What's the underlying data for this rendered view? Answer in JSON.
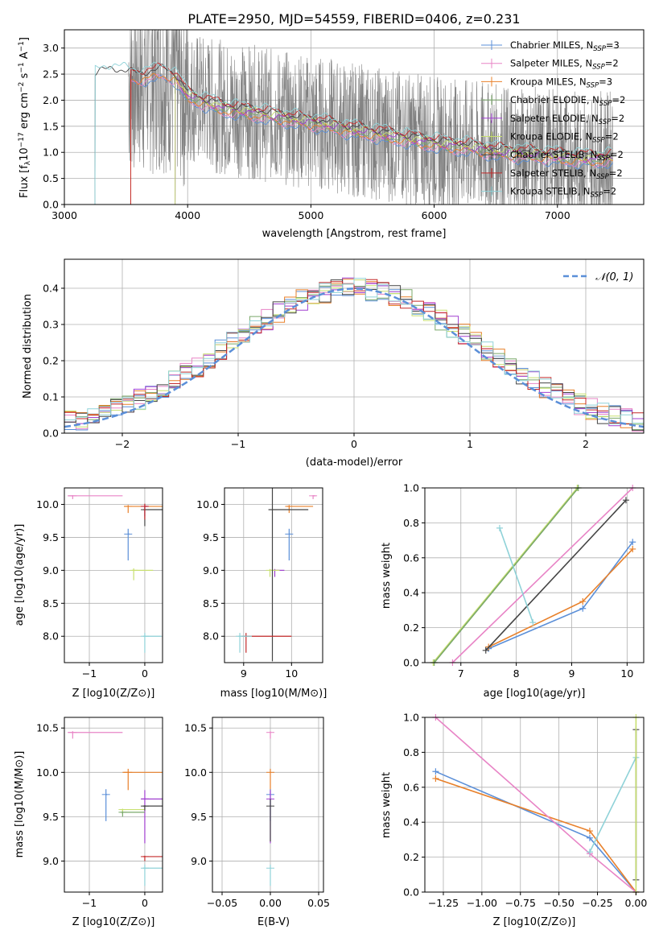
{
  "colors": {
    "chabrier_miles": "#5b8fd8",
    "salpeter_miles": "#e884c6",
    "kroupa_miles": "#e8802a",
    "chabrier_elodie": "#7aa86a",
    "salpeter_elodie": "#a03fd0",
    "kroupa_elodie": "#c8e070",
    "chabrier_stelib": "#444444",
    "salpeter_stelib": "#c42a2a",
    "kroupa_stelib": "#8fd2d8",
    "data": "#808080",
    "normal": "#5b8fd8"
  },
  "legend_labels": {
    "chabrier_miles": "Chabrier MILES, N_SSP=3",
    "salpeter_miles": "Salpeter MILES, N_SSP=2",
    "kroupa_miles": "Kroupa MILES, N_SSP=3",
    "chabrier_elodie": "Chabrier ELODIE, N_SSP=2",
    "salpeter_elodie": "Salpeter ELODIE, N_SSP=2",
    "kroupa_elodie": "Kroupa ELODIE, N_SSP=2",
    "chabrier_stelib": "Chabrier STELIB, N_SSP=2",
    "salpeter_stelib": "Salpeter STELIB, N_SSP=2",
    "kroupa_stelib": "Kroupa STELIB, N_SSP=2"
  },
  "chart_data": [
    {
      "id": "spectrum",
      "type": "line",
      "title": "PLATE=2950, MJD=54559, FIBERID=0406, z=0.231",
      "xlabel": "wavelength [Angstrom, rest frame]",
      "ylabel": "Flux [f_λ 10^-17 erg cm^-2 s^-1 A^-1]",
      "xlim": [
        3000,
        7700
      ],
      "ylim": [
        0,
        3.35
      ],
      "xticks": [
        3000,
        4000,
        5000,
        6000,
        7000
      ],
      "yticks": [
        0.0,
        0.5,
        1.0,
        1.5,
        2.0,
        2.5,
        3.0
      ],
      "data_range": [
        3520,
        7450
      ],
      "model_continuum": {
        "x": [
          3250,
          3300,
          3400,
          3500,
          3600,
          3700,
          3800,
          3900,
          4000,
          4100,
          4300,
          4500,
          4700,
          4900,
          5100,
          5300,
          5500,
          5700,
          5900,
          6100,
          6300,
          6500,
          6700,
          6900,
          7100,
          7300,
          7450
        ],
        "y": [
          2.45,
          2.5,
          2.55,
          2.5,
          2.45,
          2.5,
          2.55,
          2.45,
          2.1,
          2.0,
          1.85,
          1.78,
          1.7,
          1.62,
          1.55,
          1.45,
          1.38,
          1.3,
          1.22,
          1.15,
          1.1,
          1.02,
          0.98,
          0.95,
          0.9,
          0.88,
          0.9
        ]
      },
      "series": [
        {
          "key": "chabrier_miles",
          "start": 3540
        },
        {
          "key": "salpeter_miles",
          "start": 3540
        },
        {
          "key": "kroupa_miles",
          "start": 3540
        },
        {
          "key": "chabrier_elodie",
          "start": 3900
        },
        {
          "key": "salpeter_elodie",
          "start": 3900
        },
        {
          "key": "kroupa_elodie",
          "start": 3900
        },
        {
          "key": "chabrier_stelib",
          "start": 3250
        },
        {
          "key": "salpeter_stelib",
          "start": 3540
        },
        {
          "key": "kroupa_stelib",
          "start": 3250
        }
      ]
    },
    {
      "id": "residuals",
      "type": "line",
      "xlabel": "(data-model)/error",
      "ylabel": "Normed distribution",
      "xlim": [
        -2.5,
        2.5
      ],
      "ylim": [
        0,
        0.48
      ],
      "xticks": [
        -2,
        -1,
        0,
        1,
        2
      ],
      "yticks": [
        0.0,
        0.1,
        0.2,
        0.3,
        0.4
      ],
      "legend": "𝒩(0, 1)",
      "legend_position": "top-right",
      "bin_width": 0.1
    },
    {
      "id": "age_vs_z",
      "type": "scatter",
      "xlabel": "Z [log10(Z/Z⊙)]",
      "ylabel": "age [log10(age/yr)]",
      "xlim": [
        -1.45,
        0.32
      ],
      "ylim": [
        7.6,
        10.25
      ],
      "xticks": [
        -1,
        0
      ],
      "yticks": [
        8.0,
        8.5,
        9.0,
        9.5,
        10.0
      ],
      "points": [
        {
          "key": "salpeter_miles",
          "x": -1.3,
          "y": 10.13,
          "xerr": 0.9,
          "yerr": 0.05
        },
        {
          "key": "kroupa_miles",
          "x": -0.3,
          "y": 9.97,
          "xerr": 0.75,
          "yerr": 0.1
        },
        {
          "key": "chabrier_miles",
          "x": -0.3,
          "y": 9.55,
          "xerr": 0.02,
          "yerr": 0.4
        },
        {
          "key": "salpeter_elodie",
          "x": 0.0,
          "y": 9.97,
          "xerr": 0.05,
          "yerr": 0.15
        },
        {
          "key": "kroupa_elodie",
          "x": -0.2,
          "y": 9.0,
          "xerr": 0.35,
          "yerr": 0.15
        },
        {
          "key": "chabrier_stelib",
          "x": 0.0,
          "y": 9.92,
          "xerr": 0.35,
          "yerr": 0.25
        },
        {
          "key": "salpeter_stelib",
          "x": 0.0,
          "y": 9.97,
          "xerr": 0.05,
          "yerr": 0.2
        },
        {
          "key": "kroupa_stelib",
          "x": 0.0,
          "y": 8.0,
          "xerr": 0.3,
          "yerr": 0.25
        }
      ]
    },
    {
      "id": "age_vs_mass",
      "type": "scatter",
      "xlabel": "mass [log10(M/M⊙)]",
      "xlim": [
        8.6,
        10.65
      ],
      "ylim": [
        7.6,
        10.25
      ],
      "xticks": [
        9,
        10
      ],
      "yticks": [
        8.0,
        8.5,
        9.0,
        9.5,
        10.0
      ],
      "points": [
        {
          "key": "salpeter_miles",
          "x": 10.45,
          "y": 10.13,
          "xerr": 0.05,
          "yerr": 0.05
        },
        {
          "key": "kroupa_miles",
          "x": 9.95,
          "y": 9.97,
          "xerr": 0.5,
          "yerr": 0.1
        },
        {
          "key": "chabrier_miles",
          "x": 9.95,
          "y": 9.55,
          "xerr": 0.02,
          "yerr": 0.4
        },
        {
          "key": "salpeter_elodie",
          "x": 9.65,
          "y": 9.0,
          "xerr": 0.2,
          "yerr": 0.1
        },
        {
          "key": "kroupa_elodie",
          "x": 9.55,
          "y": 9.0,
          "xerr": 0.2,
          "yerr": 0.1
        },
        {
          "key": "chabrier_stelib",
          "x": 9.6,
          "y": 9.92,
          "xerr": 0.75,
          "yerr": 2.3
        },
        {
          "key": "salpeter_stelib",
          "x": 9.05,
          "y": 8.0,
          "xerr": 0.95,
          "yerr": 0.25
        },
        {
          "key": "kroupa_stelib",
          "x": 8.92,
          "y": 8.0,
          "xerr": 0.25,
          "yerr": 0.25
        }
      ]
    },
    {
      "id": "weight_vs_age",
      "type": "line",
      "xlabel": "age [log10(age/yr)]",
      "ylabel": "mass weight",
      "xlim": [
        6.35,
        10.3
      ],
      "ylim": [
        0,
        1.0
      ],
      "xticks": [
        7,
        8,
        9,
        10
      ],
      "yticks": [
        0.0,
        0.2,
        0.4,
        0.6,
        0.8,
        1.0
      ],
      "series": [
        {
          "key": "chabrier_miles",
          "x": [
            7.5,
            9.2,
            10.1
          ],
          "y": [
            0.08,
            0.31,
            0.69
          ]
        },
        {
          "key": "kroupa_miles",
          "x": [
            7.5,
            9.2,
            10.1
          ],
          "y": [
            0.09,
            0.35,
            0.65
          ]
        },
        {
          "key": "salpeter_miles",
          "x": [
            6.85,
            10.1
          ],
          "y": [
            0.0,
            1.0
          ]
        },
        {
          "key": "kroupa_elodie",
          "x": [
            6.5,
            9.1
          ],
          "y": [
            0.0,
            1.0
          ]
        },
        {
          "key": "chabrier_elodie",
          "x": [
            6.52,
            9.12
          ],
          "y": [
            0.0,
            1.0
          ]
        },
        {
          "key": "chabrier_stelib",
          "x": [
            7.45,
            9.98
          ],
          "y": [
            0.07,
            0.93
          ]
        },
        {
          "key": "kroupa_stelib",
          "x": [
            7.7,
            8.3
          ],
          "y": [
            0.77,
            0.23
          ]
        }
      ]
    },
    {
      "id": "mass_vs_z",
      "type": "scatter",
      "xlabel": "Z [log10(Z/Z⊙)]",
      "ylabel": "mass [log10(M/M⊙)]",
      "xlim": [
        -1.45,
        0.32
      ],
      "ylim": [
        8.65,
        10.62
      ],
      "xticks": [
        -1,
        0
      ],
      "yticks": [
        9.0,
        9.5,
        10.0,
        10.5
      ],
      "points": [
        {
          "key": "salpeter_miles",
          "x": -1.3,
          "y": 10.45,
          "xerr": 0.9,
          "yerr": 0.07
        },
        {
          "key": "kroupa_miles",
          "x": -0.3,
          "y": 10.0,
          "xerr": 1.0,
          "yerr": 0.2
        },
        {
          "key": "chabrier_miles",
          "x": -0.7,
          "y": 9.75,
          "xerr": 0.02,
          "yerr": 0.3
        },
        {
          "key": "salpeter_elodie",
          "x": 0.0,
          "y": 9.7,
          "xerr": 0.65,
          "yerr": 0.5
        },
        {
          "key": "kroupa_elodie",
          "x": -0.4,
          "y": 9.58,
          "xerr": 0.4,
          "yerr": 0.05
        },
        {
          "key": "chabrier_elodie",
          "x": -0.4,
          "y": 9.55,
          "xerr": 0.4,
          "yerr": 0.05
        },
        {
          "key": "chabrier_stelib",
          "x": 0.0,
          "y": 9.62,
          "xerr": 0.35,
          "yerr": 0.05
        },
        {
          "key": "salpeter_stelib",
          "x": 0.0,
          "y": 9.05,
          "xerr": 0.35,
          "yerr": 0.05
        },
        {
          "key": "kroupa_stelib",
          "x": 0.0,
          "y": 8.92,
          "xerr": 0.35,
          "yerr": 0.2
        }
      ]
    },
    {
      "id": "mass_vs_ebv",
      "type": "scatter",
      "xlabel": "E(B-V)",
      "xlim": [
        -0.06,
        0.055
      ],
      "ylim": [
        8.65,
        10.62
      ],
      "xticks": [
        -0.05,
        0.0,
        0.05
      ],
      "yticks": [
        9.0,
        9.5,
        10.0,
        10.5
      ],
      "points": [
        {
          "key": "salpeter_miles",
          "x": 0.0,
          "y": 10.45,
          "yerr": 0.07
        },
        {
          "key": "kroupa_miles",
          "x": 0.0,
          "y": 10.0,
          "yerr": 0.2
        },
        {
          "key": "chabrier_miles",
          "x": 0.0,
          "y": 9.75,
          "yerr": 0.3
        },
        {
          "key": "salpeter_elodie",
          "x": 0.0,
          "y": 9.7,
          "yerr": 0.5
        },
        {
          "key": "chabrier_stelib",
          "x": 0.0,
          "y": 9.62,
          "yerr": 0.4
        },
        {
          "key": "kroupa_stelib",
          "x": 0.0,
          "y": 8.92,
          "yerr": 0.2
        }
      ]
    },
    {
      "id": "weight_vs_z",
      "type": "line",
      "xlabel": "Z [log10(Z/Z⊙)]",
      "ylabel": "mass weight",
      "xlim": [
        -1.37,
        0.05
      ],
      "ylim": [
        0,
        1.0
      ],
      "xticks": [
        -1.25,
        -1.0,
        -0.75,
        -0.5,
        -0.25,
        0.0
      ],
      "yticks": [
        0.0,
        0.2,
        0.4,
        0.6,
        0.8,
        1.0
      ],
      "series": [
        {
          "key": "chabrier_miles",
          "x": [
            -1.3,
            -0.3,
            0.0
          ],
          "y": [
            0.69,
            0.31,
            0.0
          ]
        },
        {
          "key": "kroupa_miles",
          "x": [
            -1.3,
            -0.3,
            0.0
          ],
          "y": [
            0.65,
            0.35,
            0.0
          ]
        },
        {
          "key": "salpeter_miles",
          "x": [
            -1.3,
            -0.3,
            0.0
          ],
          "y": [
            1.0,
            0.22,
            0.0
          ]
        },
        {
          "key": "kroupa_stelib",
          "x": [
            -0.3,
            0.0
          ],
          "y": [
            0.23,
            0.77
          ]
        },
        {
          "key": "chabrier_stelib",
          "x": [
            0.0,
            0.0
          ],
          "y": [
            0.07,
            0.93
          ]
        },
        {
          "key": "kroupa_elodie",
          "x": [
            0.0,
            0.0
          ],
          "y": [
            0.0,
            1.0
          ]
        }
      ]
    }
  ]
}
